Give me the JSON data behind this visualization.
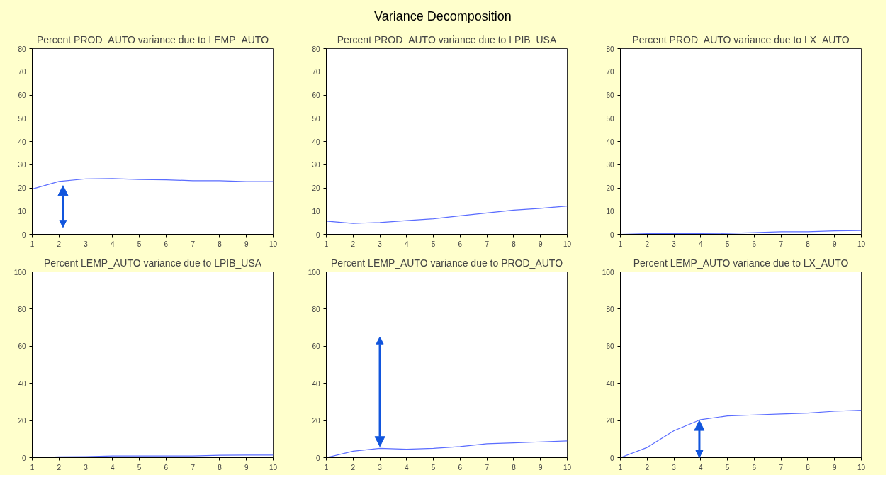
{
  "chart_data": [
    {
      "type": "line",
      "subtitle": "Percent PROD_AUTO variance due to LEMP_AUTO",
      "x": [
        1,
        2,
        3,
        4,
        5,
        6,
        7,
        8,
        9,
        10
      ],
      "series": [
        {
          "color": "#5a6cff",
          "values": [
            19.5,
            22.8,
            23.9,
            24.0,
            23.6,
            23.5,
            23.1,
            23.1,
            22.7,
            22.7
          ]
        }
      ],
      "xlim": [
        1,
        10
      ],
      "xticks": [
        1,
        2,
        3,
        4,
        5,
        6,
        7,
        8,
        9,
        10
      ],
      "ylim": [
        0,
        80
      ],
      "yticks": [
        0,
        10,
        20,
        30,
        40,
        50,
        60,
        70,
        80
      ]
    },
    {
      "type": "line",
      "title": "Variance Decomposition",
      "subtitle": "Percent PROD_AUTO variance due to LPIB_USA",
      "x": [
        1,
        2,
        3,
        4,
        5,
        6,
        7,
        8,
        9,
        10
      ],
      "series": [
        {
          "color": "#5a6cff",
          "values": [
            5.7,
            4.7,
            5.1,
            5.9,
            6.7,
            8.0,
            9.2,
            10.4,
            11.2,
            12.2
          ]
        }
      ],
      "xlim": [
        1,
        10
      ],
      "xticks": [
        1,
        2,
        3,
        4,
        5,
        6,
        7,
        8,
        9,
        10
      ],
      "ylim": [
        0,
        80
      ],
      "yticks": [
        0,
        10,
        20,
        30,
        40,
        50,
        60,
        70,
        80
      ]
    },
    {
      "type": "line",
      "subtitle": "Percent PROD_AUTO variance due to LX_AUTO",
      "x": [
        1,
        2,
        3,
        4,
        5,
        6,
        7,
        8,
        9,
        10
      ],
      "series": [
        {
          "color": "#5a6cff",
          "values": [
            0,
            0.3,
            0.3,
            0.3,
            0.4,
            0.7,
            1.1,
            1.1,
            1.5,
            1.6
          ]
        }
      ],
      "xlim": [
        1,
        10
      ],
      "xticks": [
        1,
        2,
        3,
        4,
        5,
        6,
        7,
        8,
        9,
        10
      ],
      "ylim": [
        0,
        80
      ],
      "yticks": [
        0,
        10,
        20,
        30,
        40,
        50,
        60,
        70,
        80
      ]
    },
    {
      "type": "line",
      "subtitle": "Percent LEMP_AUTO variance due to LPIB_USA",
      "x": [
        1,
        2,
        3,
        4,
        5,
        6,
        7,
        8,
        9,
        10
      ],
      "series": [
        {
          "color": "#5a6cff",
          "values": [
            0,
            0.4,
            0.5,
            0.9,
            0.9,
            0.9,
            0.9,
            1.3,
            1.4,
            1.4
          ]
        }
      ],
      "xlim": [
        1,
        10
      ],
      "xticks": [
        1,
        2,
        3,
        4,
        5,
        6,
        7,
        8,
        9,
        10
      ],
      "ylim": [
        0,
        100
      ],
      "yticks": [
        0,
        20,
        40,
        60,
        80,
        100
      ]
    },
    {
      "type": "line",
      "subtitle": "Percent LEMP_AUTO variance due to PROD_AUTO",
      "x": [
        1,
        2,
        3,
        4,
        5,
        6,
        7,
        8,
        9,
        10
      ],
      "series": [
        {
          "color": "#5a6cff",
          "values": [
            0,
            3.5,
            5,
            4.5,
            5,
            6,
            7.5,
            8,
            8.5,
            9
          ]
        }
      ],
      "xlim": [
        1,
        10
      ],
      "xticks": [
        1,
        2,
        3,
        4,
        5,
        6,
        7,
        8,
        9,
        10
      ],
      "ylim": [
        0,
        100
      ],
      "yticks": [
        0,
        20,
        40,
        60,
        80,
        100
      ]
    },
    {
      "type": "line",
      "subtitle": "Percent LEMP_AUTO variance due to LX_AUTO",
      "x": [
        1,
        2,
        3,
        4,
        5,
        6,
        7,
        8,
        9,
        10
      ],
      "series": [
        {
          "color": "#5a6cff",
          "values": [
            0,
            5.5,
            14.5,
            20.5,
            22.5,
            23,
            23.5,
            24,
            25,
            25.5
          ]
        }
      ],
      "xlim": [
        1,
        10
      ],
      "xticks": [
        1,
        2,
        3,
        4,
        5,
        6,
        7,
        8,
        9,
        10
      ],
      "ylim": [
        0,
        100
      ],
      "yticks": [
        0,
        20,
        40,
        60,
        80,
        100
      ]
    }
  ]
}
